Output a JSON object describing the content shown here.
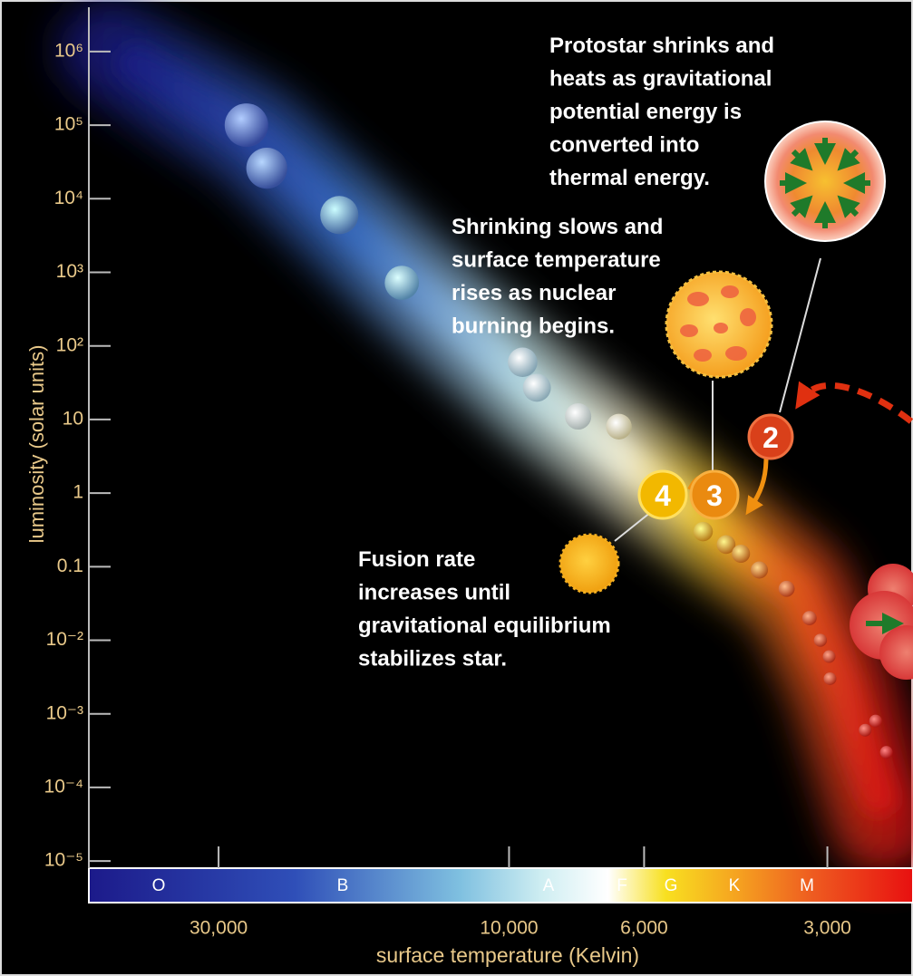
{
  "chart_data": {
    "type": "scatter",
    "x_label": "surface temperature (Kelvin)",
    "y_label": "luminosity (solar units)",
    "log_x": true,
    "log_y": true,
    "xlim": [
      49000,
      2170
    ],
    "ylim": [
      8e-06,
      4000000
    ],
    "xticks": [
      {
        "value": 30000,
        "label": "30,000"
      },
      {
        "value": 10000,
        "label": "10,000"
      },
      {
        "value": 6000,
        "label": "6,000"
      },
      {
        "value": 3000,
        "label": "3,000"
      }
    ],
    "yticks": [
      {
        "value": 1000000,
        "label": "10⁶"
      },
      {
        "value": 100000,
        "label": "10⁵"
      },
      {
        "value": 10000,
        "label": "10⁴"
      },
      {
        "value": 1000,
        "label": "10³"
      },
      {
        "value": 100,
        "label": "10²"
      },
      10,
      1,
      0.1,
      {
        "value": 0.01,
        "label": "10⁻²"
      },
      {
        "value": 0.001,
        "label": "10⁻³"
      },
      {
        "value": 0.0001,
        "label": "10⁻⁴"
      },
      {
        "value": 1e-05,
        "label": "10⁻⁵"
      }
    ],
    "spectral_classes": [
      "O",
      "B",
      "A",
      "F",
      "G",
      "K",
      "M"
    ],
    "x": [
      27000,
      25000,
      19000,
      15000,
      9500,
      9000,
      7700,
      6600,
      4800,
      4400,
      4160,
      3880,
      3500,
      3210,
      3080,
      2980,
      2970,
      2600,
      2500,
      2400
    ],
    "values": [
      100000,
      26000,
      6000,
      720,
      60,
      27,
      11,
      8,
      0.3,
      0.2,
      0.15,
      0.09,
      0.05,
      0.02,
      0.01,
      0.006,
      0.003,
      0.0006,
      0.0008,
      0.0003
    ],
    "markers": [
      "2",
      "3",
      "4"
    ],
    "annotations": [
      {
        "lines": [
          "Protostar shrinks and",
          "heats as gravitational",
          "potential energy is",
          "converted into",
          "thermal energy."
        ]
      },
      {
        "lines": [
          "Shrinking slows and",
          "surface temperature",
          "rises as nuclear",
          "burning begins."
        ]
      },
      {
        "lines": [
          "Fusion rate",
          "increases until",
          "gravitational equilibrium",
          "stabilizes star."
        ]
      }
    ]
  }
}
